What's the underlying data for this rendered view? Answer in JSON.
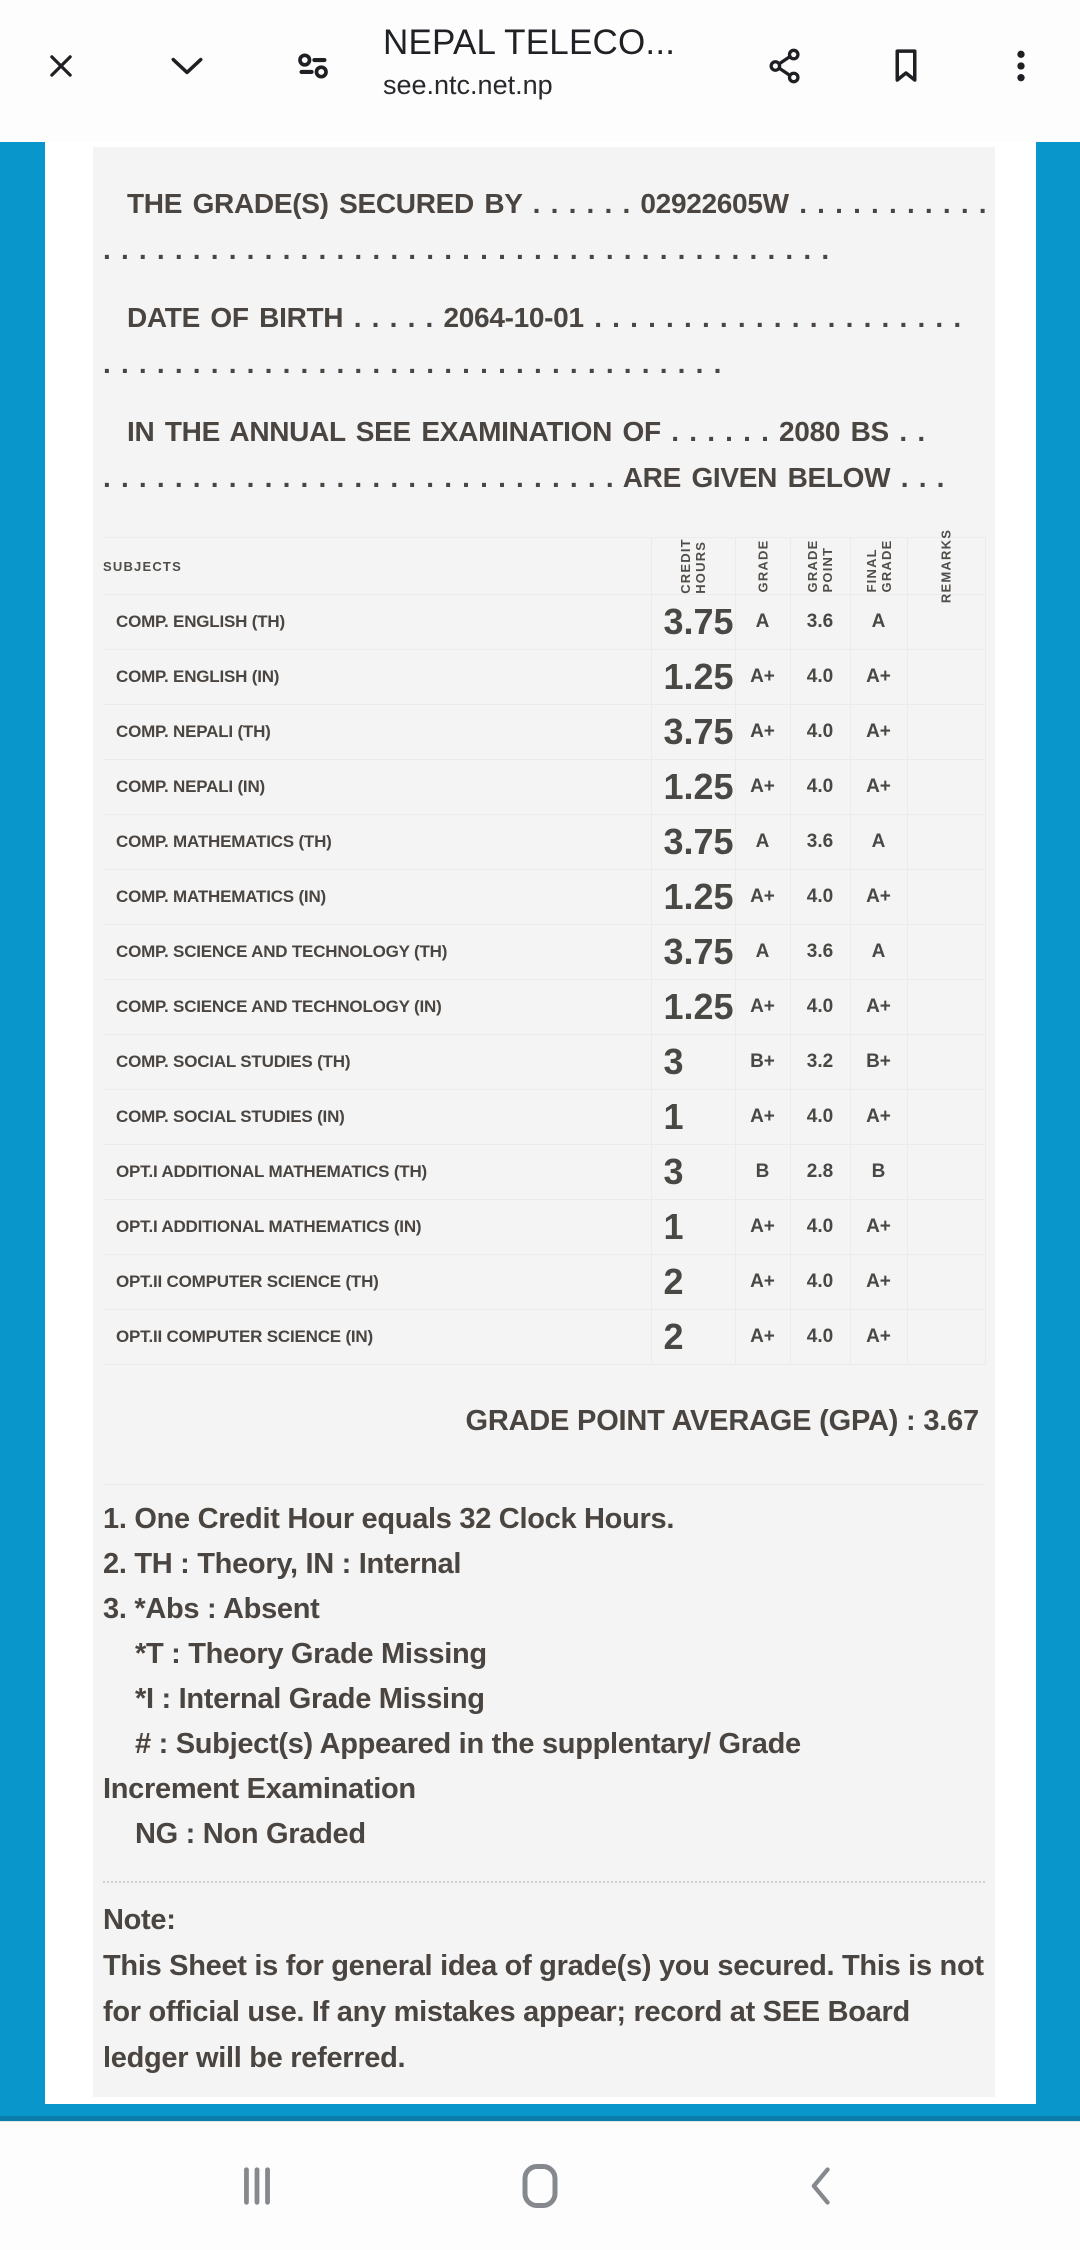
{
  "browser": {
    "title": "NEPAL TELECO...",
    "url": "see.ntc.net.np",
    "icons": {
      "close": "close-icon",
      "collapse": "chevron-down-icon",
      "tune": "tune-icon",
      "share": "share-icon",
      "bookmark": "bookmark-icon",
      "menu": "kebab-menu-icon"
    }
  },
  "document": {
    "heading_paragraphs": [
      {
        "lines": [
          "THE GRADE(S) SECURED BY . . . . . . 02922605W . . . . . . . . . . . .",
          ". . . . . . . . . . . . . . . . . . . . . . . . . . . . . . . . . . . . . . . . ."
        ]
      },
      {
        "lines": [
          "DATE OF BIRTH . . . . . 2064-10-01 . . . . . . . . . . . . . . . . . . . . .",
          ". . . . . . . . . . . . . . . . . . . . . . . . . . . . . . . . . . ."
        ]
      },
      {
        "lines": [
          "IN THE ANNUAL SEE EXAMINATION OF . . . . . . 2080 BS . .",
          ". . . . . . . . . . . . . . . . . . . . . . . . . . . . . ARE GIVEN BELOW . . ."
        ]
      }
    ],
    "table": {
      "subjects_header": "SUBJECTS",
      "column_headers": [
        "CREDIT\nHOURS",
        "GRADE",
        "GRADE\nPOINT",
        "FINAL\nGRADE",
        "REMARKS"
      ],
      "rows": [
        {
          "subject": "COMP. ENGLISH (TH)",
          "credit": "3.75",
          "grade": "A",
          "point": "3.6",
          "final": "A",
          "remarks": ""
        },
        {
          "subject": "COMP. ENGLISH (IN)",
          "credit": "1.25",
          "grade": "A+",
          "point": "4.0",
          "final": "A+",
          "remarks": ""
        },
        {
          "subject": "COMP. NEPALI (TH)",
          "credit": "3.75",
          "grade": "A+",
          "point": "4.0",
          "final": "A+",
          "remarks": ""
        },
        {
          "subject": "COMP. NEPALI (IN)",
          "credit": "1.25",
          "grade": "A+",
          "point": "4.0",
          "final": "A+",
          "remarks": ""
        },
        {
          "subject": "COMP. MATHEMATICS (TH)",
          "credit": "3.75",
          "grade": "A",
          "point": "3.6",
          "final": "A",
          "remarks": ""
        },
        {
          "subject": "COMP. MATHEMATICS (IN)",
          "credit": "1.25",
          "grade": "A+",
          "point": "4.0",
          "final": "A+",
          "remarks": ""
        },
        {
          "subject": "COMP. SCIENCE AND TECHNOLOGY (TH)",
          "credit": "3.75",
          "grade": "A",
          "point": "3.6",
          "final": "A",
          "remarks": ""
        },
        {
          "subject": "COMP. SCIENCE AND TECHNOLOGY (IN)",
          "credit": "1.25",
          "grade": "A+",
          "point": "4.0",
          "final": "A+",
          "remarks": ""
        },
        {
          "subject": "COMP. SOCIAL STUDIES (TH)",
          "credit": "3",
          "grade": "B+",
          "point": "3.2",
          "final": "B+",
          "remarks": ""
        },
        {
          "subject": "COMP. SOCIAL STUDIES (IN)",
          "credit": "1",
          "grade": "A+",
          "point": "4.0",
          "final": "A+",
          "remarks": ""
        },
        {
          "subject": "OPT.I ADDITIONAL MATHEMATICS (TH)",
          "credit": "3",
          "grade": "B",
          "point": "2.8",
          "final": "B",
          "remarks": ""
        },
        {
          "subject": "OPT.I ADDITIONAL MATHEMATICS (IN)",
          "credit": "1",
          "grade": "A+",
          "point": "4.0",
          "final": "A+",
          "remarks": ""
        },
        {
          "subject": "OPT.II COMPUTER SCIENCE (TH)",
          "credit": "2",
          "grade": "A+",
          "point": "4.0",
          "final": "A+",
          "remarks": ""
        },
        {
          "subject": "OPT.II COMPUTER SCIENCE (IN)",
          "credit": "2",
          "grade": "A+",
          "point": "4.0",
          "final": "A+",
          "remarks": ""
        }
      ]
    },
    "gpa_line": "GRADE POINT AVERAGE (GPA) : 3.67",
    "notes": [
      {
        "text": "1. One Credit Hour equals 32 Clock Hours.",
        "indent": false
      },
      {
        "text": "2. TH : Theory, IN : Internal",
        "indent": false
      },
      {
        "text": "3. *Abs : Absent",
        "indent": false
      },
      {
        "text": "*T : Theory Grade Missing",
        "indent": true
      },
      {
        "text": "*I : Internal Grade Missing",
        "indent": true
      },
      {
        "text": "# : Subject(s) Appeared in the supplentary/ Grade",
        "indent": true
      },
      {
        "text": "Increment Examination",
        "indent": false
      },
      {
        "text": "NG : Non Graded",
        "indent": true
      }
    ],
    "note_title": "Note:",
    "note_body": "This Sheet is for general idea of grade(s) you secured. This is not for official use. If any mistakes appear; record at SEE Board ledger will be referred."
  },
  "navbar": {
    "icons": {
      "recents": "recents-icon",
      "home": "home-icon",
      "back": "back-icon"
    }
  },
  "colors": {
    "accent_blue": "#0996cb",
    "accent_blue_dark": "#0b7dab",
    "panel_gray": "#f4f4f4",
    "text_dark": "#4a4541",
    "chrome_icon": "#1f2023",
    "nav_icon": "#85898d"
  }
}
